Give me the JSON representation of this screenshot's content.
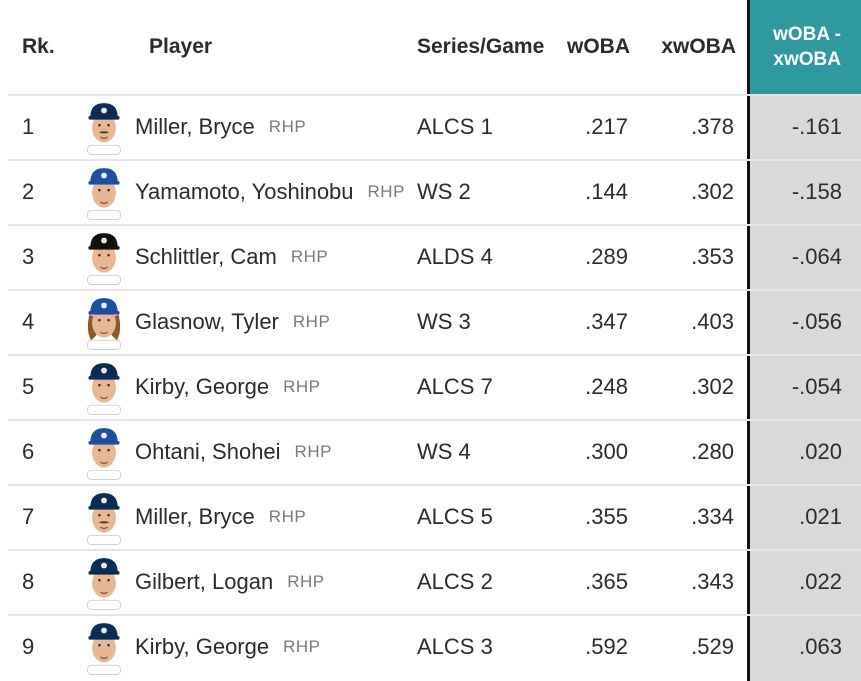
{
  "header": {
    "rank": "Rk.",
    "player": "Player",
    "series": "Series/Game",
    "woba": "wOBA",
    "xwoba": "xwOBA",
    "diff_line1": "wOBA -",
    "diff_line2": "xwOBA"
  },
  "colors": {
    "accent": "#2e9aa0",
    "highlight_col": "#d9d9d9",
    "mariners_cap": "#0c2c56",
    "dodgers_cap": "#1e4fa0",
    "yankees_cap": "#111111"
  },
  "rows": [
    {
      "rank": "1",
      "name": "Miller, Bryce",
      "hand": "RHP",
      "series": "ALCS 1",
      "woba": ".217",
      "xwoba": ".378",
      "diff": "-.161",
      "cap_icon": "mariners-cap-icon",
      "mustache": true
    },
    {
      "rank": "2",
      "name": "Yamamoto, Yoshinobu",
      "hand": "RHP",
      "series": "WS 2",
      "woba": ".144",
      "xwoba": ".302",
      "diff": "-.158",
      "cap_icon": "dodgers-cap-icon"
    },
    {
      "rank": "3",
      "name": "Schlittler, Cam",
      "hand": "RHP",
      "series": "ALDS 4",
      "woba": ".289",
      "xwoba": ".353",
      "diff": "-.064",
      "cap_icon": "yankees-cap-icon"
    },
    {
      "rank": "4",
      "name": "Glasnow, Tyler",
      "hand": "RHP",
      "series": "WS 3",
      "woba": ".347",
      "xwoba": ".403",
      "diff": "-.056",
      "cap_icon": "dodgers-cap-icon",
      "long_hair": true
    },
    {
      "rank": "5",
      "name": "Kirby, George",
      "hand": "RHP",
      "series": "ALCS 7",
      "woba": ".248",
      "xwoba": ".302",
      "diff": "-.054",
      "cap_icon": "mariners-cap-icon"
    },
    {
      "rank": "6",
      "name": "Ohtani, Shohei",
      "hand": "RHP",
      "series": "WS 4",
      "woba": ".300",
      "xwoba": ".280",
      "diff": ".020",
      "cap_icon": "dodgers-cap-icon"
    },
    {
      "rank": "7",
      "name": "Miller, Bryce",
      "hand": "RHP",
      "series": "ALCS 5",
      "woba": ".355",
      "xwoba": ".334",
      "diff": ".021",
      "cap_icon": "mariners-cap-icon",
      "mustache": true
    },
    {
      "rank": "8",
      "name": "Gilbert, Logan",
      "hand": "RHP",
      "series": "ALCS 2",
      "woba": ".365",
      "xwoba": ".343",
      "diff": ".022",
      "cap_icon": "mariners-cap-icon"
    },
    {
      "rank": "9",
      "name": "Kirby, George",
      "hand": "RHP",
      "series": "ALCS 3",
      "woba": ".592",
      "xwoba": ".529",
      "diff": ".063",
      "cap_icon": "mariners-cap-icon"
    }
  ]
}
